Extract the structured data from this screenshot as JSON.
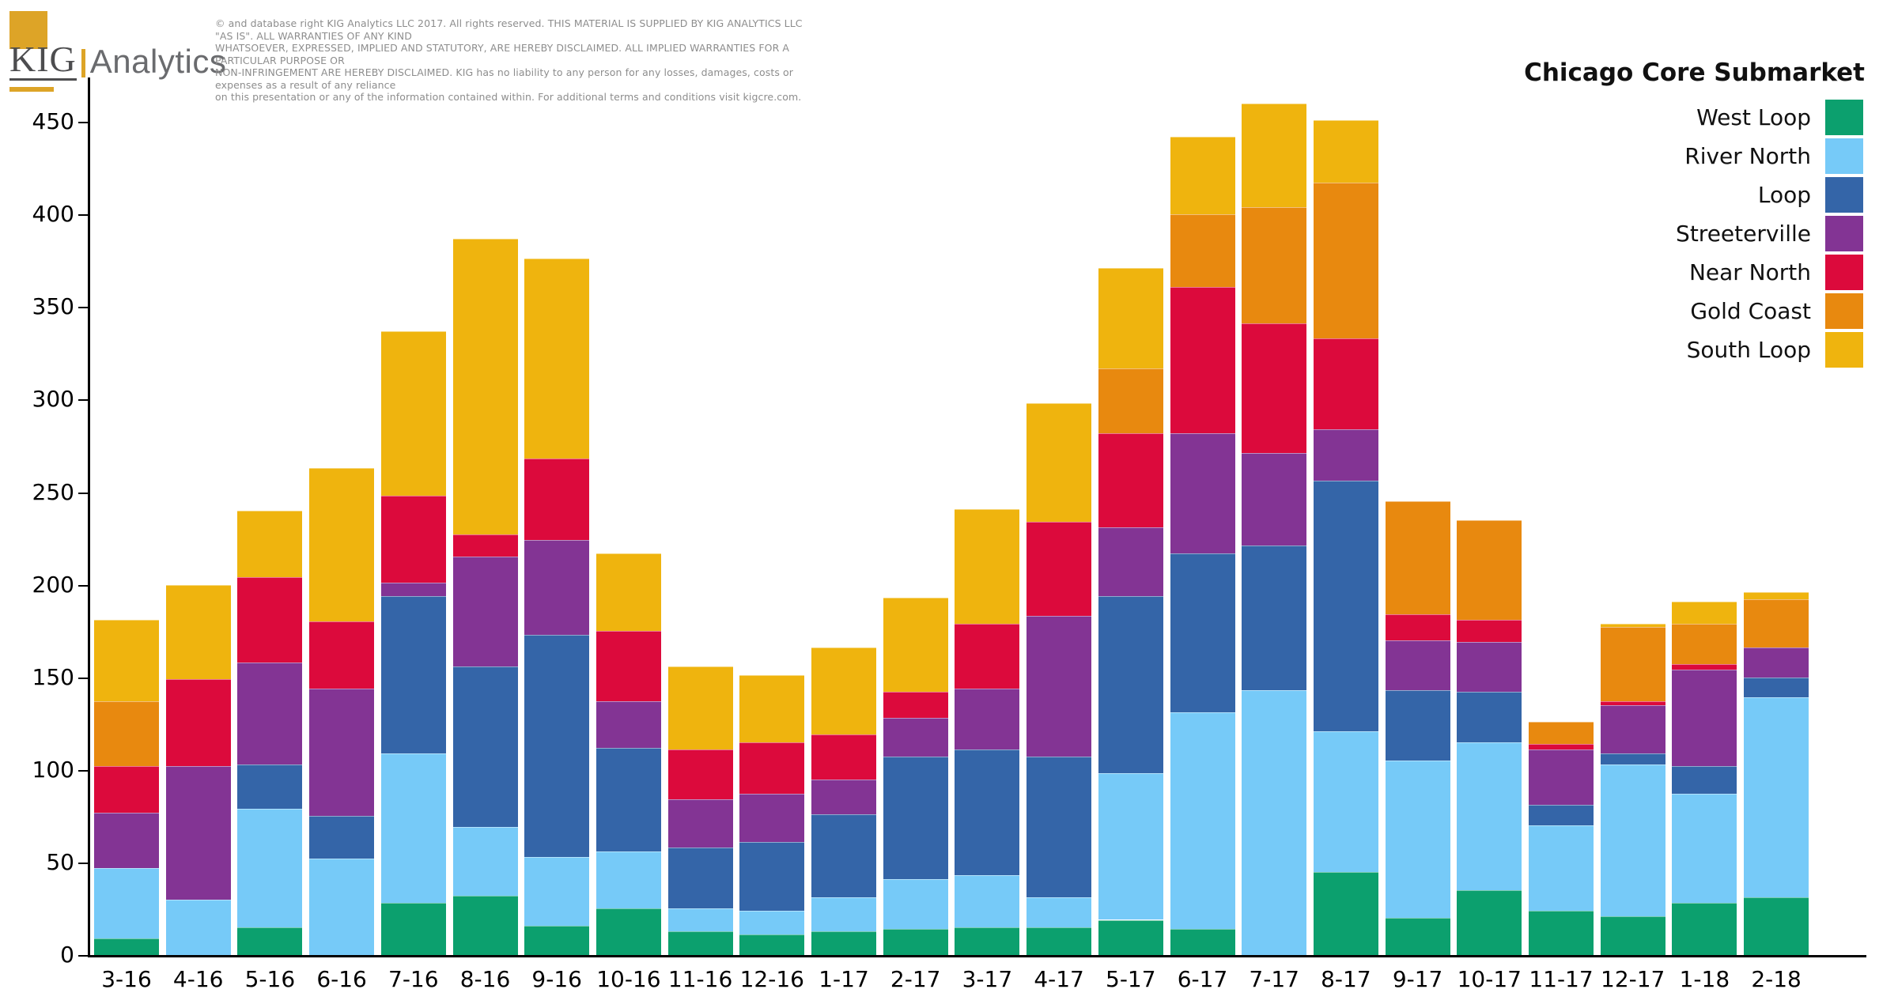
{
  "logo": {
    "kig": "KIG",
    "analytics": "Analytics"
  },
  "disclaimer": {
    "lines": [
      "©  and database right KIG Analytics LLC 2017. All rights reserved. THIS MATERIAL IS SUPPLIED BY KIG ANALYTICS LLC \"AS IS\". ALL WARRANTIES OF ANY KIND",
      "WHATSOEVER, EXPRESSED, IMPLIED AND STATUTORY, ARE HEREBY DISCLAIMED. ALL IMPLIED WARRANTIES FOR A PARTICULAR PURPOSE OR",
      "NON-INFRINGEMENT ARE HEREBY DISCLAIMED. KIG has no liability to any person for any losses, damages, costs or expenses as a result of any reliance",
      "on this presentation or any of the information contained within. For additional terms and conditions visit kigcre.com."
    ]
  },
  "legend": {
    "title": "Chicago Core Submarket",
    "position": "right"
  },
  "chart_data": {
    "type": "bar",
    "stacked": true,
    "grid": false,
    "title": "Chicago Core Submarket",
    "xlabel": "",
    "ylabel": "",
    "ylim": [
      0,
      478
    ],
    "yticks": [
      0,
      50,
      100,
      150,
      200,
      250,
      300,
      350,
      400,
      450
    ],
    "categories": [
      "3-16",
      "4-16",
      "5-16",
      "6-16",
      "7-16",
      "8-16",
      "9-16",
      "10-16",
      "11-16",
      "12-16",
      "1-17",
      "2-17",
      "3-17",
      "4-17",
      "5-17",
      "6-17",
      "7-17",
      "8-17",
      "9-17",
      "10-17",
      "11-17",
      "12-17",
      "1-18",
      "2-18"
    ],
    "series": [
      {
        "name": "West Loop",
        "color": "#0CA06E",
        "values": [
          9,
          0,
          15,
          0,
          28,
          32,
          16,
          25,
          13,
          11,
          13,
          14,
          15,
          15,
          19,
          14,
          0,
          45,
          20,
          35,
          24,
          21,
          28,
          31
        ]
      },
      {
        "name": "River North",
        "color": "#76CAF8",
        "values": [
          38,
          30,
          64,
          52,
          81,
          37,
          37,
          31,
          12,
          13,
          18,
          27,
          28,
          16,
          79,
          117,
          143,
          76,
          85,
          80,
          46,
          82,
          59,
          108
        ]
      },
      {
        "name": "Loop",
        "color": "#3465A8",
        "values": [
          0,
          0,
          24,
          23,
          85,
          87,
          120,
          56,
          33,
          37,
          45,
          66,
          68,
          76,
          96,
          86,
          78,
          135,
          38,
          27,
          11,
          6,
          15,
          11
        ]
      },
      {
        "name": "Streeterville",
        "color": "#833494",
        "values": [
          30,
          72,
          55,
          69,
          7,
          59,
          51,
          25,
          26,
          26,
          19,
          21,
          33,
          76,
          37,
          65,
          50,
          28,
          27,
          27,
          30,
          26,
          52,
          16
        ]
      },
      {
        "name": "Near North",
        "color": "#DC0A3C",
        "values": [
          25,
          47,
          46,
          36,
          47,
          12,
          44,
          38,
          27,
          28,
          24,
          14,
          35,
          51,
          51,
          79,
          70,
          49,
          14,
          12,
          3,
          2,
          3,
          0
        ]
      },
      {
        "name": "Gold Coast",
        "color": "#E8890F",
        "values": [
          35,
          0,
          0,
          0,
          0,
          0,
          0,
          0,
          0,
          0,
          0,
          0,
          0,
          0,
          35,
          39,
          63,
          84,
          61,
          54,
          12,
          40,
          22,
          26
        ]
      },
      {
        "name": "South Loop",
        "color": "#EFB40E",
        "values": [
          44,
          51,
          36,
          83,
          89,
          160,
          108,
          42,
          45,
          36,
          47,
          51,
          62,
          64,
          54,
          42,
          56,
          34,
          0,
          0,
          0,
          2,
          12,
          4
        ]
      }
    ],
    "totals": [
      181,
      200,
      240,
      263,
      337,
      387,
      376,
      217,
      156,
      151,
      166,
      193,
      241,
      298,
      371,
      442,
      460,
      451,
      245,
      235,
      126,
      179,
      191,
      196
    ]
  }
}
